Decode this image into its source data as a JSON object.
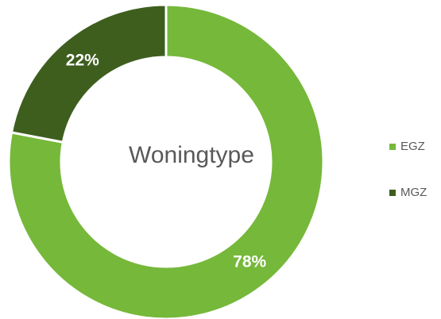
{
  "chart_data": {
    "type": "pie",
    "title": "Woningtype",
    "categories": [
      "EGZ",
      "MGZ"
    ],
    "values": [
      78,
      22
    ],
    "value_labels": [
      "78%",
      "22%"
    ],
    "colors": [
      "#76b83a",
      "#3e5e1e"
    ],
    "legend": "right",
    "donut": true
  }
}
